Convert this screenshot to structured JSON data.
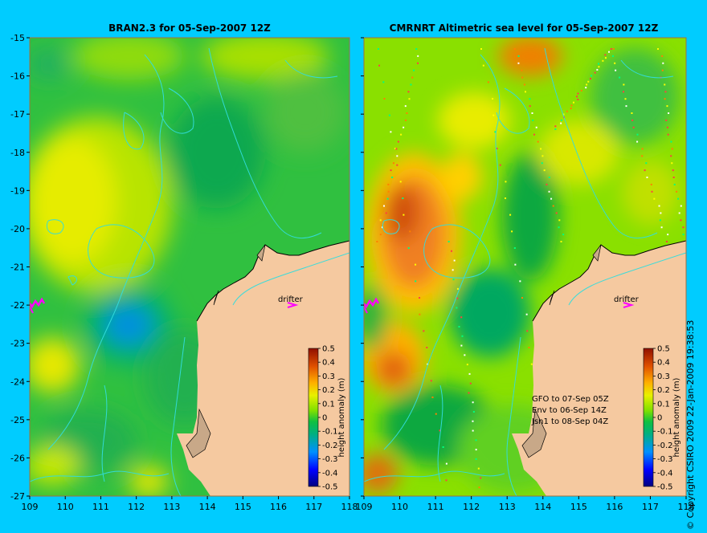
{
  "panels": [
    {
      "title": "BRAN2.3 for 05-Sep-2007 12Z",
      "drifter_label": "drifter",
      "notes": []
    },
    {
      "title": "CMRNRT Altimetric sea level  for 05-Sep-2007 12Z",
      "drifter_label": "drifter",
      "notes": [
        "GFO to 07-Sep 05Z",
        "Env to 06-Sep 14Z",
        "Jsn1 to 08-Sep 04Z"
      ]
    }
  ],
  "axes": {
    "lat_ticks": [
      "-15",
      "-16",
      "-17",
      "-18",
      "-19",
      "-20",
      "-21",
      "-22",
      "-23",
      "-24",
      "-25",
      "-26",
      "-27"
    ],
    "lon_ticks": [
      "109",
      "110",
      "111",
      "112",
      "113",
      "114",
      "115",
      "116",
      "117",
      "118"
    ],
    "lat_range": [
      -27,
      -15
    ],
    "lon_range": [
      109,
      118
    ]
  },
  "colorbar": {
    "label": "height anomaly (m)",
    "ticks": [
      "0.5",
      "0.4",
      "0.3",
      "0.2",
      "0.1",
      "0",
      "-0.1",
      "-0.2",
      "-0.3",
      "-0.4",
      "-0.5"
    ],
    "colors": [
      "#000080",
      "#0000ff",
      "#0080ff",
      "#00c8c8",
      "#00a060",
      "#30c030",
      "#80e000",
      "#e0e000",
      "#ffa000",
      "#e05000",
      "#a01000"
    ]
  },
  "credit": "© Copyright CSIRO 2009   22-Jan-2009 19:38:53",
  "colors": {
    "background": "#00ccff",
    "land": "#f5c9a0",
    "coast_contour": "#33dddd",
    "drifter": "#ff00ff"
  }
}
